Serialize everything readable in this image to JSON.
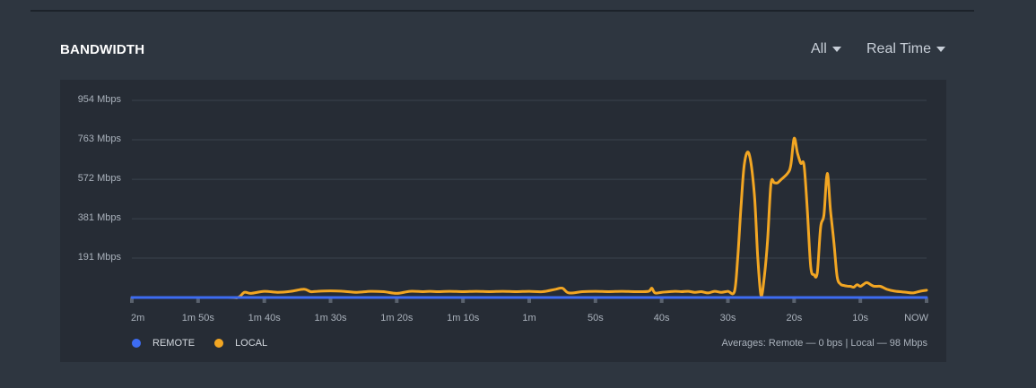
{
  "header": {
    "title": "BANDWIDTH",
    "filter_label": "All",
    "range_label": "Real Time"
  },
  "colors": {
    "remote": "#3d6cf2",
    "local": "#f2a623",
    "grid": "#3a424d",
    "tick_label": "#aab2bc"
  },
  "legend": {
    "remote": "REMOTE",
    "local": "LOCAL"
  },
  "averages_text": "Averages: Remote — 0 bps | Local — 98 Mbps",
  "chart_data": {
    "type": "line",
    "ylim": [
      0,
      954
    ],
    "y_ticks": [
      191,
      381,
      572,
      763,
      954
    ],
    "y_tick_labels": [
      "191 Mbps",
      "381 Mbps",
      "572 Mbps",
      "763 Mbps",
      "954 Mbps"
    ],
    "x_range_seconds_ago": [
      120,
      0
    ],
    "x_ticks_seconds_ago": [
      120,
      110,
      100,
      90,
      80,
      70,
      60,
      50,
      40,
      30,
      20,
      10,
      0
    ],
    "x_tick_labels": [
      "2m",
      "1m 50s",
      "1m 40s",
      "1m 30s",
      "1m 20s",
      "1m 10s",
      "1m",
      "50s",
      "40s",
      "30s",
      "20s",
      "10s",
      "NOW"
    ],
    "grid": true,
    "legend_position": "bottom-left",
    "series": [
      {
        "name": "REMOTE",
        "x": [
          120,
          0
        ],
        "values": [
          0,
          0
        ]
      },
      {
        "name": "LOCAL",
        "x": [
          120,
          106,
          104,
          103,
          102,
          100,
          98,
          96,
          94,
          93,
          92,
          90,
          88,
          86,
          84,
          82,
          80,
          78,
          76,
          75,
          74,
          72,
          70,
          68,
          66,
          64,
          62,
          60,
          58,
          56,
          55,
          54,
          52,
          50,
          48,
          46,
          44,
          42,
          41.5,
          41,
          40,
          38,
          37,
          36,
          35,
          34,
          33,
          32,
          31,
          30,
          29,
          28.5,
          28,
          27.5,
          26.8,
          26,
          25.5,
          25,
          24.5,
          24,
          23.5,
          23,
          22.5,
          22,
          21,
          20.5,
          20,
          19.5,
          19,
          18.5,
          18,
          17.5,
          17,
          16.5,
          16,
          15.5,
          15,
          14.5,
          14,
          13.5,
          13,
          12.5,
          12,
          11.5,
          11,
          10.5,
          10,
          9.5,
          9,
          8,
          7,
          6,
          5,
          4,
          3,
          2,
          1,
          0
        ],
        "values": [
          0,
          0,
          0,
          25,
          20,
          30,
          25,
          30,
          40,
          28,
          30,
          32,
          30,
          25,
          30,
          28,
          20,
          30,
          28,
          30,
          28,
          30,
          28,
          30,
          28,
          30,
          28,
          30,
          28,
          40,
          45,
          22,
          28,
          30,
          28,
          30,
          28,
          30,
          45,
          22,
          25,
          30,
          28,
          30,
          25,
          28,
          22,
          30,
          25,
          30,
          30,
          200,
          450,
          650,
          695,
          500,
          200,
          10,
          100,
          280,
          550,
          555,
          555,
          570,
          600,
          640,
          770,
          700,
          650,
          640,
          420,
          150,
          110,
          120,
          340,
          400,
          600,
          420,
          270,
          100,
          65,
          58,
          55,
          54,
          50,
          62,
          54,
          64,
          72,
          55,
          54,
          40,
          32,
          28,
          25,
          22,
          30,
          35
        ]
      }
    ]
  }
}
